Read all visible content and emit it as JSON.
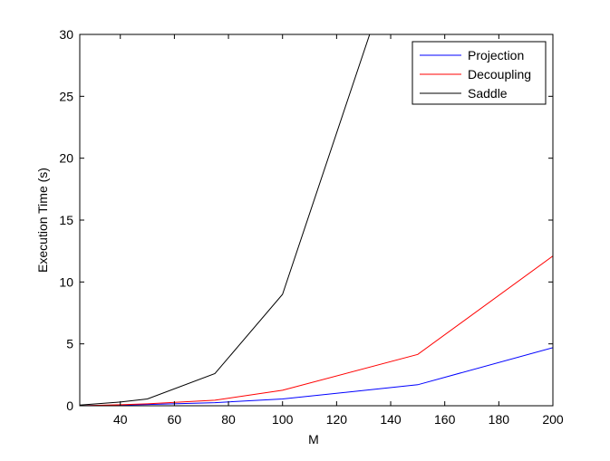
{
  "chart_data": {
    "type": "line",
    "title": "",
    "xlabel": "M",
    "ylabel": "Execution Time (s)",
    "xlim": [
      25,
      200
    ],
    "ylim": [
      0,
      30
    ],
    "xticks": [
      40,
      60,
      80,
      100,
      120,
      140,
      160,
      180,
      200
    ],
    "yticks": [
      0,
      5,
      10,
      15,
      20,
      25,
      30
    ],
    "grid": false,
    "legend_position": "top-right",
    "series": [
      {
        "name": "Projection",
        "color": "#0000ff",
        "x": [
          25,
          40,
          50,
          75,
          100,
          150,
          200
        ],
        "y": [
          0.0,
          0.05,
          0.1,
          0.25,
          0.55,
          1.7,
          4.7
        ]
      },
      {
        "name": "Decoupling",
        "color": "#ff0000",
        "x": [
          25,
          40,
          50,
          75,
          100,
          150,
          200
        ],
        "y": [
          0.0,
          0.08,
          0.15,
          0.45,
          1.25,
          4.15,
          12.1
        ]
      },
      {
        "name": "Saddle",
        "color": "#000000",
        "x": [
          25,
          40,
          50,
          75,
          100,
          133
        ],
        "y": [
          0.05,
          0.3,
          0.55,
          2.6,
          9.0,
          30.5
        ]
      }
    ]
  }
}
